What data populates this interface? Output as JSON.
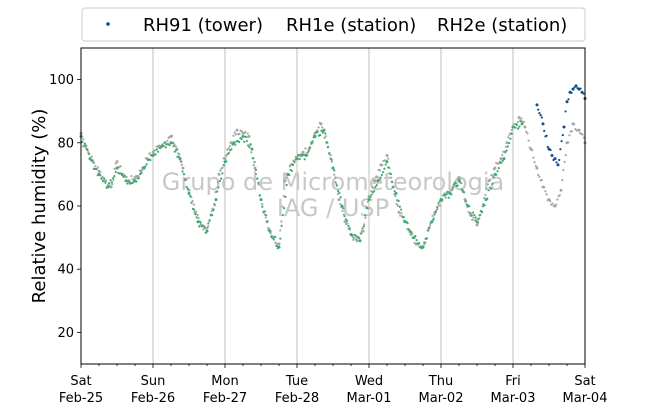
{
  "chart_data": {
    "type": "scatter",
    "title": "",
    "ylabel": "Relative humidity (%)",
    "xlabel": "",
    "ylim": [
      10,
      110
    ],
    "xlim": [
      "2017-02-25",
      "2017-03-04"
    ],
    "yticks": [
      20,
      40,
      60,
      80,
      100
    ],
    "xticks": [
      {
        "date": "2017-02-25",
        "day": "Sat",
        "label": "Feb-25"
      },
      {
        "date": "2017-02-26",
        "day": "Sun",
        "label": "Feb-26"
      },
      {
        "date": "2017-02-27",
        "day": "Mon",
        "label": "Feb-27"
      },
      {
        "date": "2017-02-28",
        "day": "Tue",
        "label": "Feb-28"
      },
      {
        "date": "2017-03-01",
        "day": "Wed",
        "label": "Mar-01"
      },
      {
        "date": "2017-03-02",
        "day": "Thu",
        "label": "Mar-02"
      },
      {
        "date": "2017-03-03",
        "day": "Fri",
        "label": "Mar-03"
      },
      {
        "date": "2017-03-04",
        "day": "Sat",
        "label": "Mar-04"
      }
    ],
    "grid": "vertical",
    "legend": "top",
    "watermark": [
      "Grupo de Micrometeorologia",
      "IAG / USP"
    ],
    "series": [
      {
        "name": "RH91 (tower)",
        "color": "#0d4e8c",
        "points": [
          [
            "2017-03-03 08:00",
            92
          ],
          [
            "2017-03-03 10:00",
            86
          ],
          [
            "2017-03-03 12:00",
            78
          ],
          [
            "2017-03-03 13:00",
            76
          ],
          [
            "2017-03-03 14:00",
            75
          ],
          [
            "2017-03-03 15:00",
            73
          ],
          [
            "2017-03-03 17:00",
            85
          ],
          [
            "2017-03-03 18:00",
            93
          ],
          [
            "2017-03-03 19:00",
            96
          ],
          [
            "2017-03-03 20:00",
            97
          ],
          [
            "2017-03-03 21:00",
            98
          ],
          [
            "2017-03-03 22:00",
            97
          ],
          [
            "2017-03-03 23:00",
            96
          ],
          [
            "2017-03-04 00:00",
            94
          ]
        ]
      },
      {
        "name": "RH1e (station)",
        "color": "#3daa6e",
        "points": [
          [
            "2017-02-25 00:00",
            82
          ],
          [
            "2017-02-25 03:00",
            75
          ],
          [
            "2017-02-25 06:00",
            70
          ],
          [
            "2017-02-25 09:00",
            66
          ],
          [
            "2017-02-25 12:00",
            72
          ],
          [
            "2017-02-25 15:00",
            68
          ],
          [
            "2017-02-25 18:00",
            68
          ],
          [
            "2017-02-25 21:00",
            72
          ],
          [
            "2017-02-26 00:00",
            76
          ],
          [
            "2017-02-26 03:00",
            79
          ],
          [
            "2017-02-26 06:00",
            80
          ],
          [
            "2017-02-26 09:00",
            75
          ],
          [
            "2017-02-26 12:00",
            64
          ],
          [
            "2017-02-26 15:00",
            55
          ],
          [
            "2017-02-26 18:00",
            52
          ],
          [
            "2017-02-26 21:00",
            62
          ],
          [
            "2017-02-27 00:00",
            74
          ],
          [
            "2017-02-27 03:00",
            80
          ],
          [
            "2017-02-27 06:00",
            82
          ],
          [
            "2017-02-27 09:00",
            78
          ],
          [
            "2017-02-27 12:00",
            62
          ],
          [
            "2017-02-27 15:00",
            52
          ],
          [
            "2017-02-27 18:00",
            47
          ],
          [
            "2017-02-27 21:00",
            70
          ],
          [
            "2017-02-28 00:00",
            75
          ],
          [
            "2017-02-28 03:00",
            76
          ],
          [
            "2017-02-28 06:00",
            82
          ],
          [
            "2017-02-28 09:00",
            84
          ],
          [
            "2017-02-28 12:00",
            72
          ],
          [
            "2017-02-28 15:00",
            60
          ],
          [
            "2017-02-28 18:00",
            51
          ],
          [
            "2017-02-28 21:00",
            49
          ],
          [
            "2017-03-01 00:00",
            62
          ],
          [
            "2017-03-01 03:00",
            68
          ],
          [
            "2017-03-01 06:00",
            74
          ],
          [
            "2017-03-01 09:00",
            64
          ],
          [
            "2017-03-01 12:00",
            55
          ],
          [
            "2017-03-01 15:00",
            50
          ],
          [
            "2017-03-01 18:00",
            47
          ],
          [
            "2017-03-01 21:00",
            55
          ],
          [
            "2017-03-02 00:00",
            62
          ],
          [
            "2017-03-02 03:00",
            64
          ],
          [
            "2017-03-02 06:00",
            68
          ],
          [
            "2017-03-02 09:00",
            60
          ],
          [
            "2017-03-02 12:00",
            55
          ],
          [
            "2017-03-02 15:00",
            62
          ],
          [
            "2017-03-02 18:00",
            70
          ],
          [
            "2017-03-02 21:00",
            75
          ],
          [
            "2017-03-03 00:00",
            85
          ],
          [
            "2017-03-03 03:00",
            86
          ]
        ]
      },
      {
        "name": "RH2e (station)",
        "color": "#a6a6a6",
        "points": [
          [
            "2017-02-25 00:00",
            83
          ],
          [
            "2017-02-25 02:00",
            78
          ],
          [
            "2017-02-25 04:00",
            74
          ],
          [
            "2017-02-25 06:00",
            71
          ],
          [
            "2017-02-25 08:00",
            68
          ],
          [
            "2017-02-25 10:00",
            66
          ],
          [
            "2017-02-25 12:00",
            74
          ],
          [
            "2017-02-25 14:00",
            70
          ],
          [
            "2017-02-25 16:00",
            68
          ],
          [
            "2017-02-25 18:00",
            69
          ],
          [
            "2017-02-25 20:00",
            71
          ],
          [
            "2017-02-25 22:00",
            75
          ],
          [
            "2017-02-26 00:00",
            77
          ],
          [
            "2017-02-26 02:00",
            79
          ],
          [
            "2017-02-26 04:00",
            80
          ],
          [
            "2017-02-26 06:00",
            82
          ],
          [
            "2017-02-26 08:00",
            78
          ],
          [
            "2017-02-26 10:00",
            72
          ],
          [
            "2017-02-26 12:00",
            65
          ],
          [
            "2017-02-26 14:00",
            58
          ],
          [
            "2017-02-26 16:00",
            54
          ],
          [
            "2017-02-26 18:00",
            53
          ],
          [
            "2017-02-26 20:00",
            59
          ],
          [
            "2017-02-26 22:00",
            70
          ],
          [
            "2017-02-27 00:00",
            75
          ],
          [
            "2017-02-27 02:00",
            80
          ],
          [
            "2017-02-27 04:00",
            84
          ],
          [
            "2017-02-27 06:00",
            83
          ],
          [
            "2017-02-27 08:00",
            82
          ],
          [
            "2017-02-27 10:00",
            72
          ],
          [
            "2017-02-27 12:00",
            62
          ],
          [
            "2017-02-27 14:00",
            55
          ],
          [
            "2017-02-27 16:00",
            50
          ],
          [
            "2017-02-27 18:00",
            48
          ],
          [
            "2017-02-27 20:00",
            68
          ],
          [
            "2017-02-27 22:00",
            73
          ],
          [
            "2017-02-28 00:00",
            75
          ],
          [
            "2017-02-28 02:00",
            77
          ],
          [
            "2017-02-28 04:00",
            78
          ],
          [
            "2017-02-28 06:00",
            83
          ],
          [
            "2017-02-28 08:00",
            86
          ],
          [
            "2017-02-28 10:00",
            80
          ],
          [
            "2017-02-28 12:00",
            72
          ],
          [
            "2017-02-28 14:00",
            62
          ],
          [
            "2017-02-28 16:00",
            55
          ],
          [
            "2017-02-28 18:00",
            51
          ],
          [
            "2017-02-28 20:00",
            49
          ],
          [
            "2017-02-28 22:00",
            52
          ],
          [
            "2017-03-01 00:00",
            63
          ],
          [
            "2017-03-01 02:00",
            68
          ],
          [
            "2017-03-01 04:00",
            73
          ],
          [
            "2017-03-01 06:00",
            76
          ],
          [
            "2017-03-01 08:00",
            66
          ],
          [
            "2017-03-01 10:00",
            58
          ],
          [
            "2017-03-01 12:00",
            55
          ],
          [
            "2017-03-01 14:00",
            51
          ],
          [
            "2017-03-01 16:00",
            48
          ],
          [
            "2017-03-01 18:00",
            47
          ],
          [
            "2017-03-01 20:00",
            53
          ],
          [
            "2017-03-01 22:00",
            58
          ],
          [
            "2017-03-02 00:00",
            62
          ],
          [
            "2017-03-02 02:00",
            64
          ],
          [
            "2017-03-02 04:00",
            66
          ],
          [
            "2017-03-02 06:00",
            69
          ],
          [
            "2017-03-02 08:00",
            62
          ],
          [
            "2017-03-02 10:00",
            57
          ],
          [
            "2017-03-02 12:00",
            54
          ],
          [
            "2017-03-02 14:00",
            60
          ],
          [
            "2017-03-02 16:00",
            68
          ],
          [
            "2017-03-02 18:00",
            72
          ],
          [
            "2017-03-02 20:00",
            75
          ],
          [
            "2017-03-02 22:00",
            80
          ],
          [
            "2017-03-03 00:00",
            85
          ],
          [
            "2017-03-03 02:00",
            88
          ],
          [
            "2017-03-03 04:00",
            85
          ],
          [
            "2017-03-03 06:00",
            78
          ],
          [
            "2017-03-03 08:00",
            72
          ],
          [
            "2017-03-03 10:00",
            66
          ],
          [
            "2017-03-03 12:00",
            62
          ],
          [
            "2017-03-03 14:00",
            60
          ],
          [
            "2017-03-03 16:00",
            65
          ],
          [
            "2017-03-03 18:00",
            80
          ],
          [
            "2017-03-03 20:00",
            86
          ],
          [
            "2017-03-03 22:00",
            84
          ],
          [
            "2017-03-04 00:00",
            80
          ]
        ]
      }
    ]
  }
}
